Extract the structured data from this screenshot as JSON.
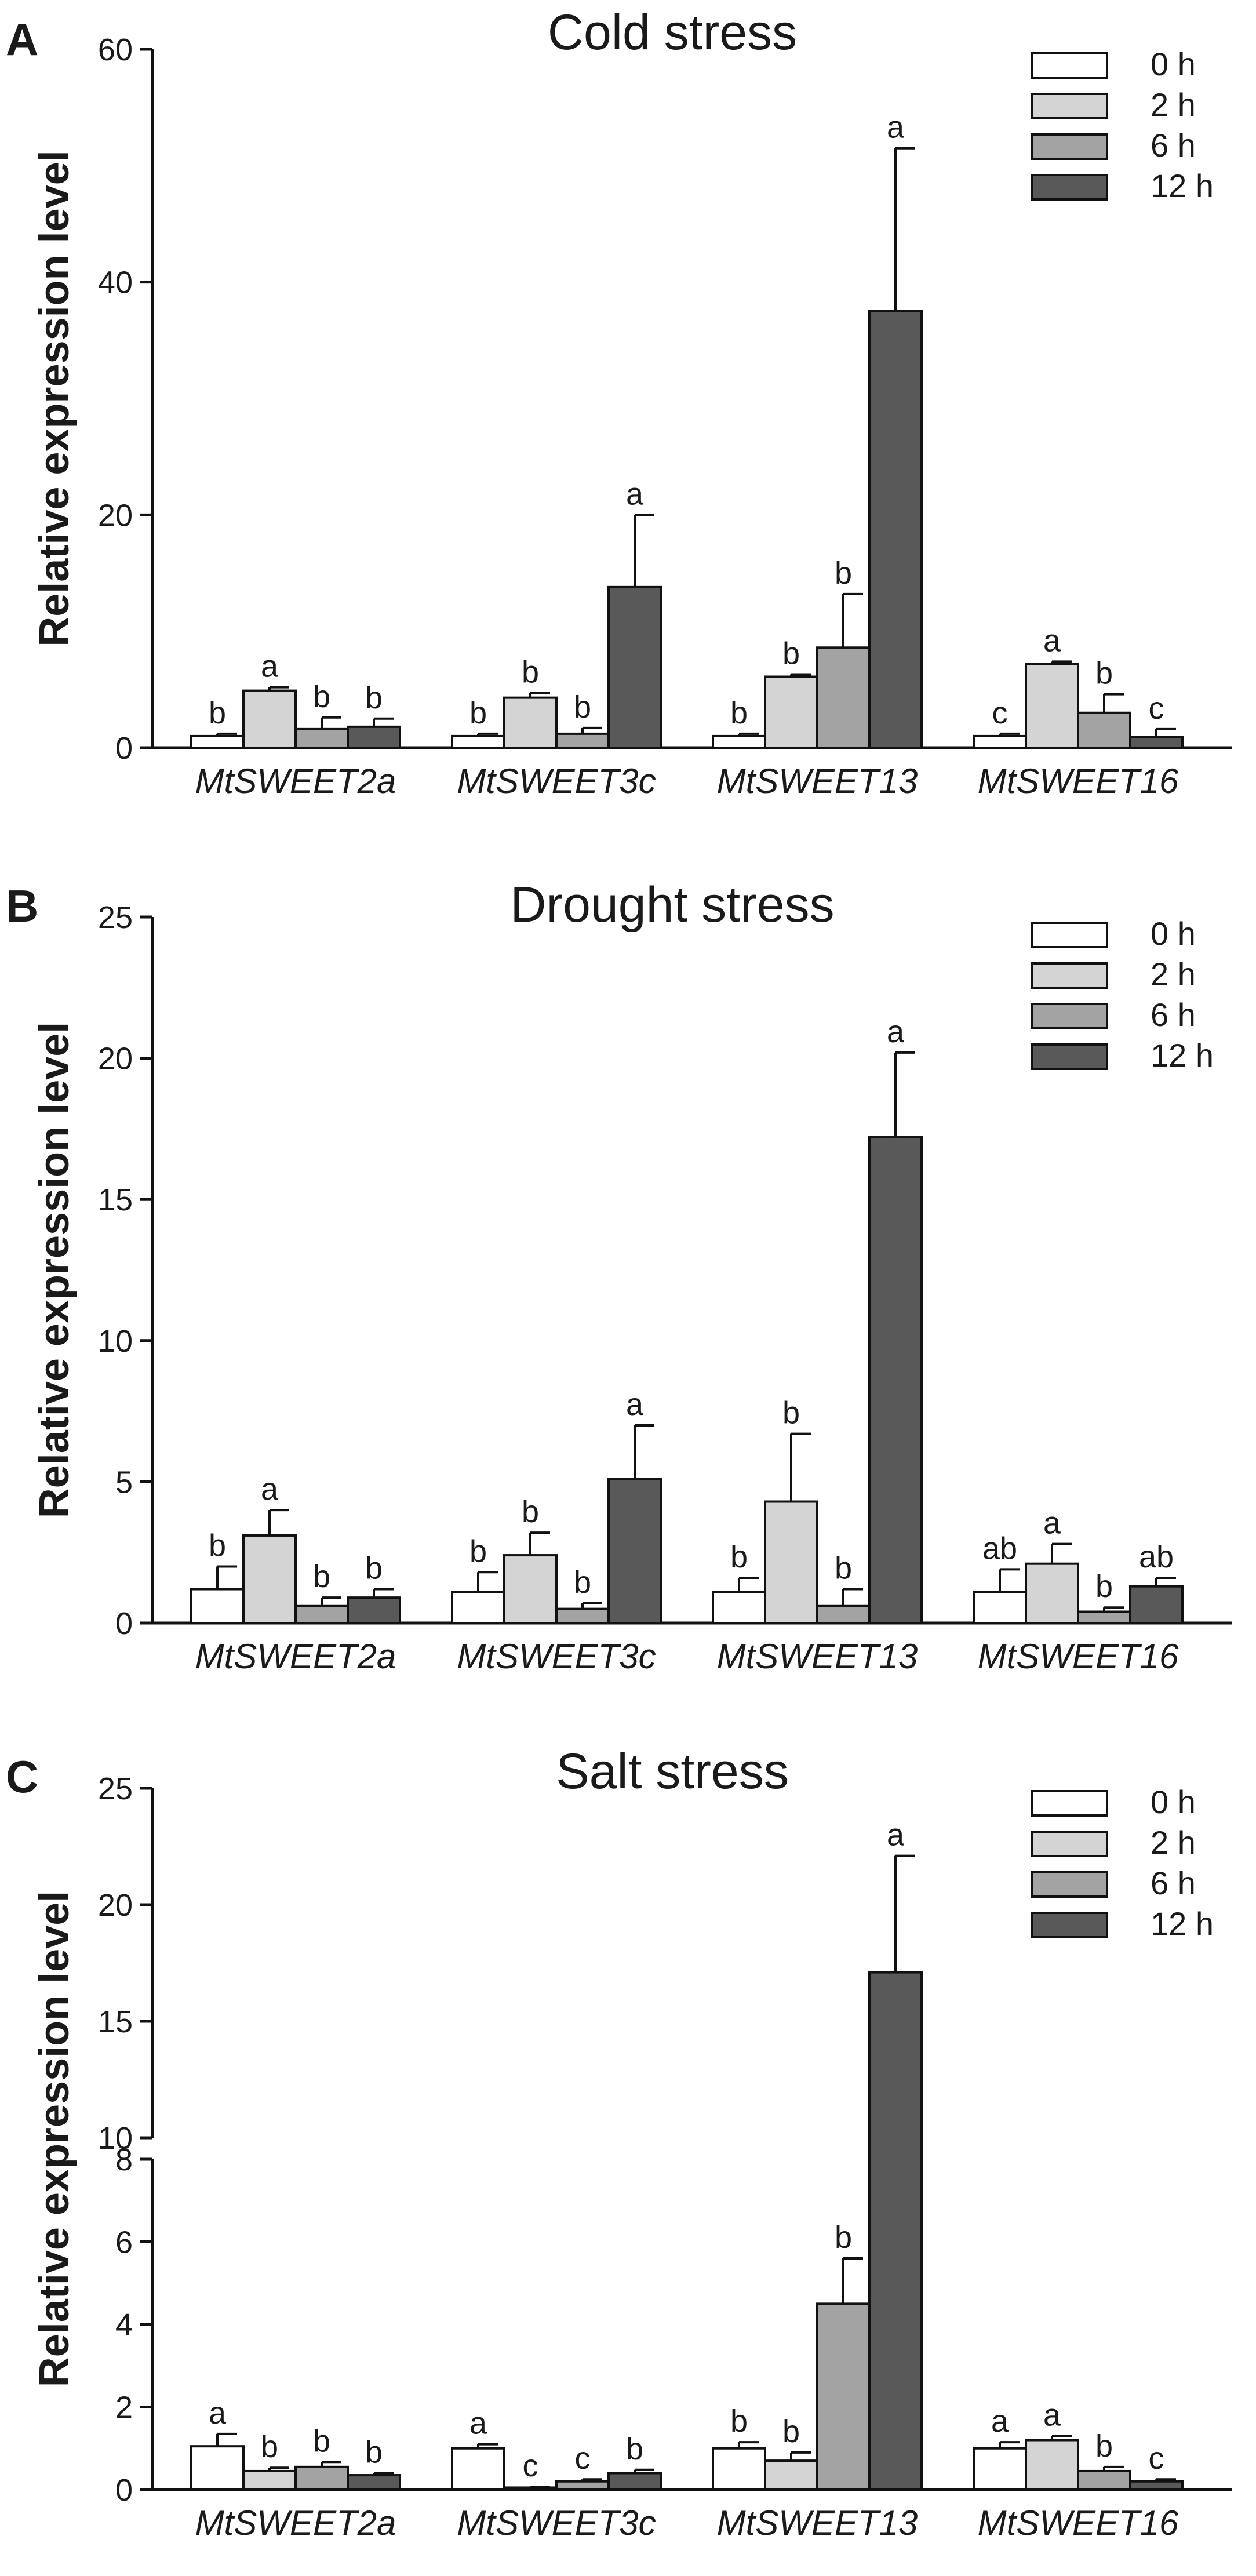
{
  "chart_data": [
    {
      "type": "bar",
      "panel": "A",
      "title": "Cold stress",
      "ylabel": "Relative expression level",
      "ylim": [
        0,
        60
      ],
      "yticks": [
        0,
        20,
        40,
        60
      ],
      "categories": [
        "MtSWEET2a",
        "MtSWEET3c",
        "MtSWEET13",
        "MtSWEET16"
      ],
      "series": [
        {
          "name": "0 h",
          "color": "#ffffff",
          "values": [
            1.0,
            1.0,
            1.0,
            1.0
          ],
          "errors": [
            0.2,
            0.2,
            0.2,
            0.2
          ],
          "letters": [
            "b",
            "b",
            "b",
            "c"
          ]
        },
        {
          "name": "2 h",
          "color": "#d4d4d4",
          "values": [
            4.9,
            4.3,
            6.1,
            7.2
          ],
          "errors": [
            0.3,
            0.4,
            0.2,
            0.2
          ],
          "letters": [
            "a",
            "b",
            "b",
            "a"
          ]
        },
        {
          "name": "6 h",
          "color": "#a3a3a3",
          "values": [
            1.6,
            1.2,
            8.6,
            3.0
          ],
          "errors": [
            1.0,
            0.5,
            4.6,
            1.6
          ],
          "letters": [
            "b",
            "b",
            "b",
            "b"
          ]
        },
        {
          "name": "12 h",
          "color": "#595959",
          "values": [
            1.8,
            13.8,
            37.5,
            0.9
          ],
          "errors": [
            0.7,
            6.2,
            14.0,
            0.7
          ],
          "letters": [
            "b",
            "a",
            "a",
            "c"
          ]
        }
      ]
    },
    {
      "type": "bar",
      "panel": "B",
      "title": "Drought stress",
      "ylabel": "Relative expression level",
      "ylim": [
        0,
        25
      ],
      "yticks": [
        0,
        5,
        10,
        15,
        20,
        25
      ],
      "categories": [
        "MtSWEET2a",
        "MtSWEET3c",
        "MtSWEET13",
        "MtSWEET16"
      ],
      "series": [
        {
          "name": "0 h",
          "color": "#ffffff",
          "values": [
            1.2,
            1.1,
            1.1,
            1.1
          ],
          "errors": [
            0.8,
            0.7,
            0.5,
            0.8
          ],
          "letters": [
            "b",
            "b",
            "b",
            "ab"
          ]
        },
        {
          "name": "2 h",
          "color": "#d4d4d4",
          "values": [
            3.1,
            2.4,
            4.3,
            2.1
          ],
          "errors": [
            0.9,
            0.8,
            2.4,
            0.7
          ],
          "letters": [
            "a",
            "b",
            "b",
            "a"
          ]
        },
        {
          "name": "6 h",
          "color": "#a3a3a3",
          "values": [
            0.6,
            0.5,
            0.6,
            0.4
          ],
          "errors": [
            0.3,
            0.2,
            0.6,
            0.15
          ],
          "letters": [
            "b",
            "b",
            "b",
            "b"
          ]
        },
        {
          "name": "12 h",
          "color": "#595959",
          "values": [
            0.9,
            5.1,
            17.2,
            1.3
          ],
          "errors": [
            0.3,
            1.9,
            3.0,
            0.3
          ],
          "letters": [
            "b",
            "a",
            "a",
            "ab"
          ]
        }
      ]
    },
    {
      "type": "bar",
      "panel": "C",
      "title": "Salt stress",
      "ylabel": "Relative expression level",
      "ylim": [
        0,
        25
      ],
      "axis_break": [
        8,
        10
      ],
      "yticks_lower": [
        0,
        2,
        4,
        6,
        8
      ],
      "yticks_upper": [
        10,
        15,
        20,
        25
      ],
      "categories": [
        "MtSWEET2a",
        "MtSWEET3c",
        "MtSWEET13",
        "MtSWEET16"
      ],
      "series": [
        {
          "name": "0 h",
          "color": "#ffffff",
          "values": [
            1.05,
            1.0,
            1.0,
            1.0
          ],
          "errors": [
            0.3,
            0.1,
            0.15,
            0.15
          ],
          "letters": [
            "a",
            "a",
            "b",
            "a"
          ]
        },
        {
          "name": "2 h",
          "color": "#d4d4d4",
          "values": [
            0.45,
            0.05,
            0.7,
            1.2
          ],
          "errors": [
            0.08,
            0.02,
            0.2,
            0.1
          ],
          "letters": [
            "b",
            "c",
            "b",
            "a"
          ]
        },
        {
          "name": "6 h",
          "color": "#a3a3a3",
          "values": [
            0.55,
            0.2,
            4.5,
            0.45
          ],
          "errors": [
            0.12,
            0.05,
            1.1,
            0.1
          ],
          "letters": [
            "b",
            "c",
            "b",
            "b"
          ]
        },
        {
          "name": "12 h",
          "color": "#595959",
          "values": [
            0.35,
            0.4,
            17.1,
            0.2
          ],
          "errors": [
            0.05,
            0.08,
            5.0,
            0.05
          ],
          "letters": [
            "b",
            "b",
            "a",
            "c"
          ]
        }
      ]
    }
  ]
}
